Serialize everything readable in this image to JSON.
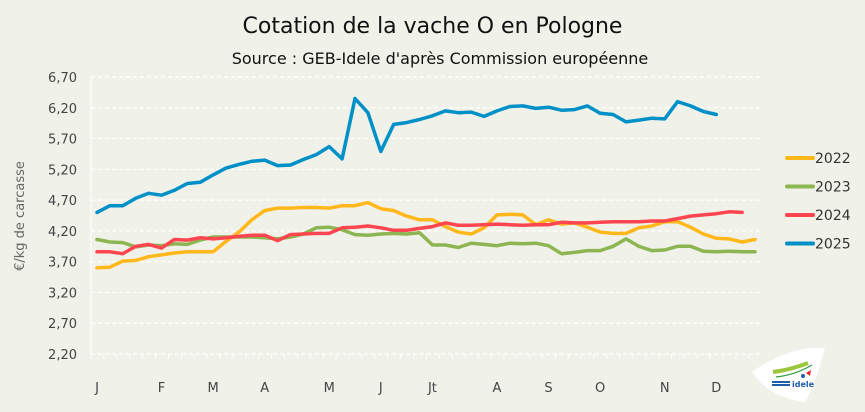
{
  "chart_data": {
    "type": "line",
    "title": "Cotation de la vache O en Pologne",
    "subtitle": "Source : GEB-Idele d'après Commission européenne",
    "ylabel": "€/kg de carcasse",
    "xlabel": "",
    "ylim": [
      2.2,
      6.7
    ],
    "yticks": [
      "2,20",
      "2,70",
      "3,20",
      "3,70",
      "4,20",
      "4,70",
      "5,20",
      "5,70",
      "6,20",
      "6,70"
    ],
    "ytick_values": [
      2.2,
      2.7,
      3.2,
      3.7,
      4.2,
      4.7,
      5.2,
      5.7,
      6.2,
      6.7
    ],
    "x_unit": "week",
    "xlim": [
      1,
      52
    ],
    "xticks": [
      {
        "label": "J",
        "week": 1
      },
      {
        "label": "F",
        "week": 6
      },
      {
        "label": "M",
        "week": 10
      },
      {
        "label": "A",
        "week": 14
      },
      {
        "label": "M",
        "week": 19
      },
      {
        "label": "J",
        "week": 23
      },
      {
        "label": "Jt",
        "week": 27
      },
      {
        "label": "A",
        "week": 32
      },
      {
        "label": "S",
        "week": 36
      },
      {
        "label": "O",
        "week": 40
      },
      {
        "label": "N",
        "week": 45
      },
      {
        "label": "D",
        "week": 49
      }
    ],
    "grid": true,
    "legend_position": "right",
    "series": [
      {
        "name": "2022",
        "color": "#ffb81c",
        "values": [
          3.6,
          3.61,
          3.71,
          3.72,
          3.78,
          3.81,
          3.84,
          3.86,
          3.86,
          3.86,
          4.03,
          4.18,
          4.38,
          4.53,
          4.57,
          4.57,
          4.58,
          4.58,
          4.57,
          4.61,
          4.61,
          4.66,
          4.56,
          4.53,
          4.44,
          4.38,
          4.38,
          4.27,
          4.18,
          4.15,
          4.25,
          4.46,
          4.47,
          4.46,
          4.3,
          4.38,
          4.31,
          4.33,
          4.26,
          4.18,
          4.16,
          4.16,
          4.25,
          4.28,
          4.35,
          4.35,
          4.26,
          4.15,
          4.08,
          4.07,
          4.02,
          4.06
        ]
      },
      {
        "name": "2023",
        "color": "#8db652",
        "values": [
          4.06,
          4.02,
          4.01,
          3.94,
          3.97,
          3.96,
          3.99,
          3.98,
          4.05,
          4.1,
          4.1,
          4.1,
          4.1,
          4.09,
          4.07,
          4.1,
          4.15,
          4.25,
          4.26,
          4.22,
          4.14,
          4.13,
          4.15,
          4.16,
          4.15,
          4.17,
          3.97,
          3.97,
          3.93,
          4.0,
          3.98,
          3.96,
          4.0,
          3.99,
          4.0,
          3.96,
          3.83,
          3.85,
          3.88,
          3.88,
          3.95,
          4.07,
          3.95,
          3.88,
          3.89,
          3.95,
          3.95,
          3.87,
          3.86,
          3.87,
          3.86,
          3.86
        ]
      },
      {
        "name": "2024",
        "color": "#ff4650",
        "values": [
          3.86,
          3.86,
          3.83,
          3.95,
          3.98,
          3.92,
          4.06,
          4.05,
          4.09,
          4.07,
          4.09,
          4.11,
          4.13,
          4.13,
          4.04,
          4.14,
          4.15,
          4.16,
          4.16,
          4.25,
          4.26,
          4.28,
          4.25,
          4.21,
          4.21,
          4.24,
          4.27,
          4.33,
          4.29,
          4.29,
          4.3,
          4.31,
          4.3,
          4.29,
          4.3,
          4.3,
          4.34,
          4.33,
          4.33,
          4.34,
          4.35,
          4.35,
          4.35,
          4.36,
          4.36,
          4.4,
          4.44,
          4.46,
          4.48,
          4.51,
          4.5
        ]
      },
      {
        "name": "2025",
        "color": "#0090c8",
        "values": [
          4.5,
          4.61,
          4.61,
          4.73,
          4.81,
          4.78,
          4.86,
          4.97,
          4.99,
          5.11,
          5.22,
          5.28,
          5.33,
          5.35,
          5.26,
          5.27,
          5.36,
          5.44,
          5.57,
          5.37,
          6.35,
          6.12,
          5.49,
          5.93,
          5.96,
          6.01,
          6.07,
          6.15,
          6.12,
          6.13,
          6.06,
          6.15,
          6.22,
          6.23,
          6.19,
          6.21,
          6.16,
          6.17,
          6.23,
          6.11,
          6.09,
          5.97,
          6.0,
          6.03,
          6.02,
          6.3,
          6.23,
          6.14,
          6.09
        ]
      }
    ]
  },
  "logo": {
    "text": "INSTITUT DE L'ÉLEVAGE idele",
    "colors": {
      "green": "#9cc63c",
      "red": "#e3262b",
      "blue": "#1d5fa8"
    }
  }
}
